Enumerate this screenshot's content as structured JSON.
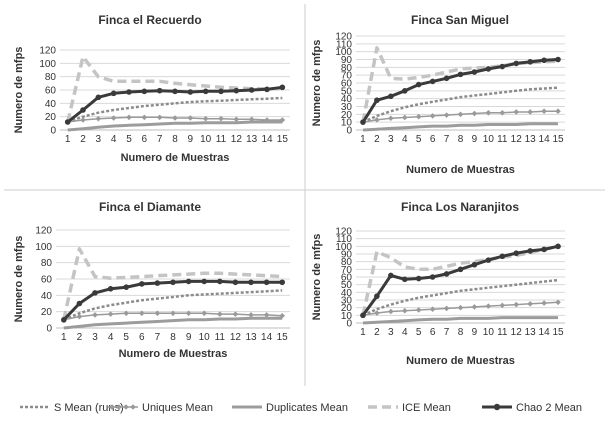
{
  "chart_data": [
    {
      "type": "line",
      "title": "Finca el Recuerdo",
      "xlabel": "Numero de Muestras",
      "ylabel": "Numero de mfps",
      "ylim": [
        0,
        120
      ],
      "yticks": [
        0,
        20,
        40,
        60,
        80,
        100,
        120
      ],
      "x": [
        1,
        2,
        3,
        4,
        5,
        6,
        7,
        8,
        9,
        10,
        11,
        12,
        13,
        14,
        15
      ],
      "grid": true,
      "series": [
        {
          "name": "S Mean (runs)",
          "values": [
            12,
            20,
            26,
            30,
            33,
            36,
            38,
            40,
            42,
            43,
            44,
            45,
            46,
            47,
            48
          ]
        },
        {
          "name": "Uniques Mean",
          "values": [
            12,
            15,
            17,
            18,
            19,
            19,
            19,
            18,
            18,
            17,
            17,
            16,
            16,
            15,
            15
          ]
        },
        {
          "name": "Duplicates Mean",
          "values": [
            0,
            2,
            4,
            6,
            7,
            8,
            9,
            10,
            10,
            11,
            11,
            11,
            12,
            12,
            12
          ]
        },
        {
          "name": "ICE Mean",
          "values": [
            12,
            110,
            80,
            73,
            73,
            73,
            73,
            70,
            68,
            66,
            64,
            63,
            62,
            62,
            62
          ]
        },
        {
          "name": "Chao 2 Mean",
          "values": [
            12,
            30,
            49,
            55,
            57,
            58,
            59,
            58,
            57,
            58,
            58,
            59,
            60,
            61,
            64
          ]
        }
      ]
    },
    {
      "type": "line",
      "title": "Finca San Miguel",
      "xlabel": "Numero de Muestras",
      "ylabel": "Numero de mfps",
      "ylim": [
        0,
        120
      ],
      "yticks": [
        0,
        10,
        20,
        30,
        40,
        50,
        60,
        70,
        80,
        90,
        100,
        110,
        120
      ],
      "x": [
        1,
        2,
        3,
        4,
        5,
        6,
        7,
        8,
        9,
        10,
        11,
        12,
        13,
        14,
        15
      ],
      "grid": true,
      "series": [
        {
          "name": "S Mean (runs)",
          "values": [
            10,
            18,
            24,
            29,
            33,
            36,
            39,
            42,
            44,
            46,
            48,
            50,
            52,
            53,
            54
          ]
        },
        {
          "name": "Uniques Mean",
          "values": [
            10,
            13,
            15,
            16,
            17,
            18,
            19,
            20,
            21,
            22,
            22,
            23,
            23,
            24,
            24
          ]
        },
        {
          "name": "Duplicates Mean",
          "values": [
            0,
            1,
            2,
            3,
            4,
            5,
            5,
            6,
            6,
            7,
            7,
            7,
            8,
            8,
            8
          ]
        },
        {
          "name": "ICE Mean",
          "values": [
            10,
            105,
            66,
            65,
            67,
            70,
            74,
            78,
            79,
            80,
            82,
            85,
            86,
            87,
            88
          ]
        },
        {
          "name": "Chao 2 Mean",
          "values": [
            10,
            38,
            43,
            50,
            58,
            62,
            66,
            71,
            74,
            78,
            81,
            85,
            87,
            89,
            90
          ]
        }
      ]
    },
    {
      "type": "line",
      "title": "Finca el Diamante",
      "xlabel": "Numero de Muestras",
      "ylabel": "Numero de mfps",
      "ylim": [
        0,
        120
      ],
      "yticks": [
        0,
        20,
        40,
        60,
        80,
        100,
        120
      ],
      "x": [
        1,
        2,
        3,
        4,
        5,
        6,
        7,
        8,
        9,
        10,
        11,
        12,
        13,
        14,
        15
      ],
      "grid": true,
      "series": [
        {
          "name": "S Mean (runs)",
          "values": [
            10,
            18,
            24,
            28,
            31,
            34,
            36,
            38,
            40,
            41,
            42,
            43,
            44,
            45,
            46
          ]
        },
        {
          "name": "Uniques Mean",
          "values": [
            10,
            14,
            16,
            17,
            18,
            18,
            18,
            18,
            18,
            18,
            17,
            17,
            16,
            16,
            15
          ]
        },
        {
          "name": "Duplicates Mean",
          "values": [
            0,
            2,
            4,
            5,
            6,
            7,
            8,
            9,
            10,
            10,
            11,
            11,
            12,
            12,
            12
          ]
        },
        {
          "name": "ICE Mean",
          "values": [
            10,
            97,
            63,
            61,
            62,
            63,
            64,
            65,
            66,
            67,
            67,
            66,
            65,
            64,
            63
          ]
        },
        {
          "name": "Chao 2 Mean",
          "values": [
            10,
            30,
            43,
            48,
            50,
            54,
            55,
            56,
            57,
            57,
            57,
            56,
            56,
            56,
            56
          ]
        }
      ]
    },
    {
      "type": "line",
      "title": "Finca Los Naranjitos",
      "xlabel": "Numero de Muestras",
      "ylabel": "Numero de mfps",
      "ylim": [
        0,
        120
      ],
      "yticks": [
        0,
        10,
        20,
        30,
        40,
        50,
        60,
        70,
        80,
        90,
        100,
        110,
        120
      ],
      "x": [
        1,
        2,
        3,
        4,
        5,
        6,
        7,
        8,
        9,
        10,
        11,
        12,
        13,
        14,
        15
      ],
      "grid": true,
      "series": [
        {
          "name": "S Mean (runs)",
          "values": [
            10,
            18,
            24,
            29,
            33,
            36,
            39,
            42,
            44,
            46,
            48,
            50,
            52,
            54,
            56
          ]
        },
        {
          "name": "Uniques Mean",
          "values": [
            10,
            13,
            15,
            16,
            17,
            18,
            19,
            20,
            21,
            22,
            23,
            24,
            25,
            26,
            27
          ]
        },
        {
          "name": "Duplicates Mean",
          "values": [
            0,
            1,
            2,
            3,
            4,
            5,
            5,
            6,
            6,
            6,
            7,
            7,
            7,
            7,
            7
          ]
        },
        {
          "name": "ICE Mean",
          "values": [
            10,
            93,
            85,
            73,
            70,
            70,
            74,
            78,
            80,
            83,
            86,
            88,
            92,
            96,
            100
          ]
        },
        {
          "name": "Chao 2 Mean",
          "values": [
            10,
            35,
            62,
            57,
            58,
            60,
            64,
            70,
            76,
            82,
            87,
            91,
            94,
            96,
            100
          ]
        }
      ]
    }
  ],
  "legend": {
    "position": "bottom",
    "items": [
      {
        "label": "S Mean (runs)",
        "color": "#8c8c8c",
        "style": "cross"
      },
      {
        "label": "Uniques Mean",
        "color": "#9a9a9a",
        "style": "diamond"
      },
      {
        "label": "Duplicates Mean",
        "color": "#9c9c9c",
        "style": "solid"
      },
      {
        "label": "ICE Mean",
        "color": "#c4c4c4",
        "style": "dash"
      },
      {
        "label": "Chao 2 Mean",
        "color": "#3a3a3a",
        "style": "dot"
      }
    ]
  }
}
